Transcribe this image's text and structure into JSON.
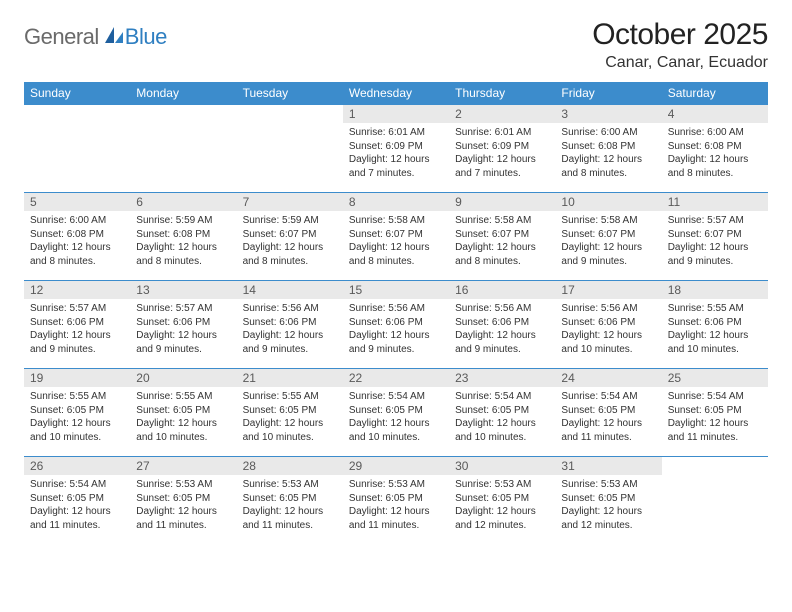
{
  "brand": {
    "part1": "General",
    "part2": "Blue"
  },
  "title": "October 2025",
  "location": "Canar, Canar, Ecuador",
  "colors": {
    "accent": "#3c8ccc",
    "header_bg": "#3c8ccc",
    "day_num_bg": "#e9e9e9",
    "text": "#333333"
  },
  "weekdays": [
    "Sunday",
    "Monday",
    "Tuesday",
    "Wednesday",
    "Thursday",
    "Friday",
    "Saturday"
  ],
  "cells": [
    {
      "empty": true
    },
    {
      "empty": true
    },
    {
      "empty": true
    },
    {
      "n": "1",
      "sr": "6:01 AM",
      "ss": "6:09 PM",
      "dl": "12 hours and 7 minutes."
    },
    {
      "n": "2",
      "sr": "6:01 AM",
      "ss": "6:09 PM",
      "dl": "12 hours and 7 minutes."
    },
    {
      "n": "3",
      "sr": "6:00 AM",
      "ss": "6:08 PM",
      "dl": "12 hours and 8 minutes."
    },
    {
      "n": "4",
      "sr": "6:00 AM",
      "ss": "6:08 PM",
      "dl": "12 hours and 8 minutes."
    },
    {
      "n": "5",
      "sr": "6:00 AM",
      "ss": "6:08 PM",
      "dl": "12 hours and 8 minutes."
    },
    {
      "n": "6",
      "sr": "5:59 AM",
      "ss": "6:08 PM",
      "dl": "12 hours and 8 minutes."
    },
    {
      "n": "7",
      "sr": "5:59 AM",
      "ss": "6:07 PM",
      "dl": "12 hours and 8 minutes."
    },
    {
      "n": "8",
      "sr": "5:58 AM",
      "ss": "6:07 PM",
      "dl": "12 hours and 8 minutes."
    },
    {
      "n": "9",
      "sr": "5:58 AM",
      "ss": "6:07 PM",
      "dl": "12 hours and 8 minutes."
    },
    {
      "n": "10",
      "sr": "5:58 AM",
      "ss": "6:07 PM",
      "dl": "12 hours and 9 minutes."
    },
    {
      "n": "11",
      "sr": "5:57 AM",
      "ss": "6:07 PM",
      "dl": "12 hours and 9 minutes."
    },
    {
      "n": "12",
      "sr": "5:57 AM",
      "ss": "6:06 PM",
      "dl": "12 hours and 9 minutes."
    },
    {
      "n": "13",
      "sr": "5:57 AM",
      "ss": "6:06 PM",
      "dl": "12 hours and 9 minutes."
    },
    {
      "n": "14",
      "sr": "5:56 AM",
      "ss": "6:06 PM",
      "dl": "12 hours and 9 minutes."
    },
    {
      "n": "15",
      "sr": "5:56 AM",
      "ss": "6:06 PM",
      "dl": "12 hours and 9 minutes."
    },
    {
      "n": "16",
      "sr": "5:56 AM",
      "ss": "6:06 PM",
      "dl": "12 hours and 9 minutes."
    },
    {
      "n": "17",
      "sr": "5:56 AM",
      "ss": "6:06 PM",
      "dl": "12 hours and 10 minutes."
    },
    {
      "n": "18",
      "sr": "5:55 AM",
      "ss": "6:06 PM",
      "dl": "12 hours and 10 minutes."
    },
    {
      "n": "19",
      "sr": "5:55 AM",
      "ss": "6:05 PM",
      "dl": "12 hours and 10 minutes."
    },
    {
      "n": "20",
      "sr": "5:55 AM",
      "ss": "6:05 PM",
      "dl": "12 hours and 10 minutes."
    },
    {
      "n": "21",
      "sr": "5:55 AM",
      "ss": "6:05 PM",
      "dl": "12 hours and 10 minutes."
    },
    {
      "n": "22",
      "sr": "5:54 AM",
      "ss": "6:05 PM",
      "dl": "12 hours and 10 minutes."
    },
    {
      "n": "23",
      "sr": "5:54 AM",
      "ss": "6:05 PM",
      "dl": "12 hours and 10 minutes."
    },
    {
      "n": "24",
      "sr": "5:54 AM",
      "ss": "6:05 PM",
      "dl": "12 hours and 11 minutes."
    },
    {
      "n": "25",
      "sr": "5:54 AM",
      "ss": "6:05 PM",
      "dl": "12 hours and 11 minutes."
    },
    {
      "n": "26",
      "sr": "5:54 AM",
      "ss": "6:05 PM",
      "dl": "12 hours and 11 minutes."
    },
    {
      "n": "27",
      "sr": "5:53 AM",
      "ss": "6:05 PM",
      "dl": "12 hours and 11 minutes."
    },
    {
      "n": "28",
      "sr": "5:53 AM",
      "ss": "6:05 PM",
      "dl": "12 hours and 11 minutes."
    },
    {
      "n": "29",
      "sr": "5:53 AM",
      "ss": "6:05 PM",
      "dl": "12 hours and 11 minutes."
    },
    {
      "n": "30",
      "sr": "5:53 AM",
      "ss": "6:05 PM",
      "dl": "12 hours and 12 minutes."
    },
    {
      "n": "31",
      "sr": "5:53 AM",
      "ss": "6:05 PM",
      "dl": "12 hours and 12 minutes."
    },
    {
      "empty": true
    }
  ],
  "labels": {
    "sunrise": "Sunrise: ",
    "sunset": "Sunset: ",
    "daylight": "Daylight: "
  }
}
